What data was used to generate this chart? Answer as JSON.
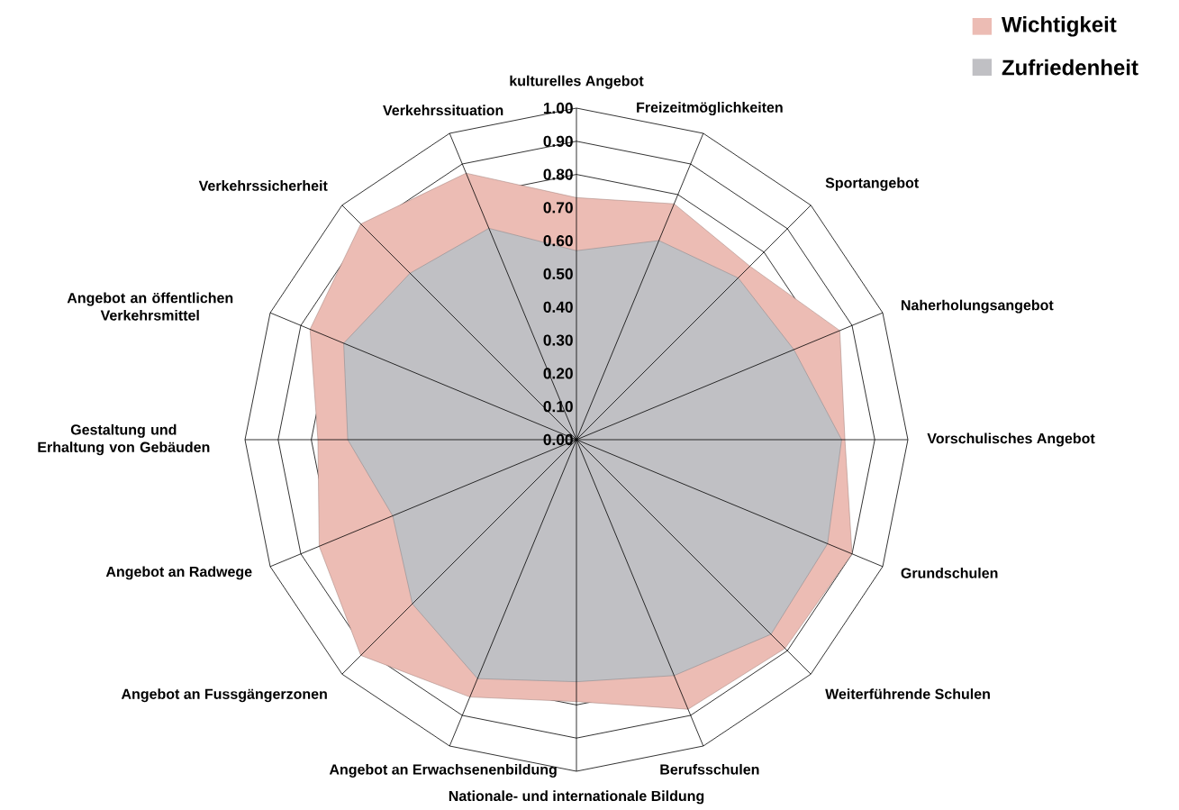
{
  "chart_data": {
    "type": "radar",
    "categories": [
      "kulturelles Angebot",
      "Freizeitmöglichkeiten",
      "Sportangebot",
      "Naherholungsangebot",
      "Vorschulisches Angebot",
      "Grundschulen",
      "Weiterführende Schulen",
      "Berufsschulen",
      "Nationale- und internationale Bildung",
      "Angebot an Erwachsenenbildung",
      "Angebot an Fussgängerzonen",
      "Angebot an Radwege",
      "Gestaltung und Erhaltung von Gebäuden",
      "Angebot an öffentlichen Verkehrsmittel",
      "Verkehrssicherheit",
      "Verkehrssituation"
    ],
    "series": [
      {
        "name": "Wichtigkeit",
        "color": "#ecbcb4",
        "values": [
          0.73,
          0.77,
          0.74,
          0.86,
          0.81,
          0.9,
          0.89,
          0.88,
          0.79,
          0.84,
          0.92,
          0.84,
          0.78,
          0.87,
          0.92,
          0.87
        ]
      },
      {
        "name": "Zufriedenheit",
        "color": "#c0c0c4",
        "values": [
          0.57,
          0.65,
          0.69,
          0.71,
          0.8,
          0.82,
          0.83,
          0.77,
          0.73,
          0.78,
          0.7,
          0.6,
          0.69,
          0.76,
          0.71,
          0.69
        ]
      }
    ],
    "ylim": [
      0,
      1
    ],
    "yticks": [
      {
        "value": 0,
        "label": "0.00"
      },
      {
        "value": 0.1,
        "label": "0.10"
      },
      {
        "value": 0.2,
        "label": "0.20"
      },
      {
        "value": 0.3,
        "label": "0.30"
      },
      {
        "value": 0.4,
        "label": "0.40"
      },
      {
        "value": 0.5,
        "label": "0.50"
      },
      {
        "value": 0.6,
        "label": "0.60"
      },
      {
        "value": 0.7,
        "label": "0.70"
      },
      {
        "value": 0.8,
        "label": "0.80"
      },
      {
        "value": 0.9,
        "label": "0.90"
      },
      {
        "value": 1,
        "label": "1.00"
      }
    ],
    "grid": true,
    "legend": "top right"
  }
}
